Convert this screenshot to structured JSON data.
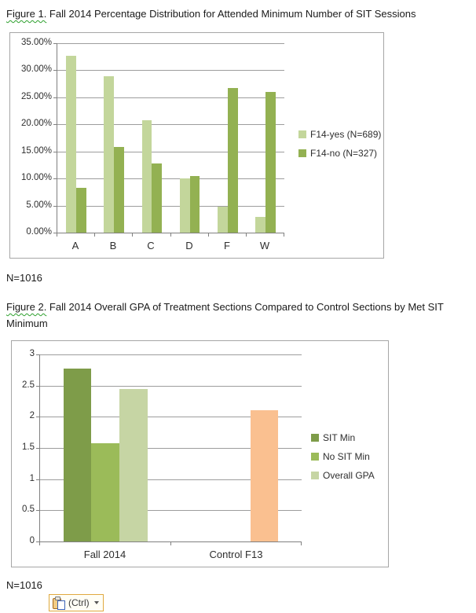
{
  "page": {
    "figure1_caption_label": "Figure 1.",
    "figure1_caption_text": " Fall 2014  Percentage Distribution for Attended Minimum Number of SIT Sessions",
    "n1": "N=1016",
    "figure2_caption_label": "Figure 2.",
    "figure2_caption_text": " Fall 2014  Overall GPA of Treatment Sections Compared to Control Sections by Met SIT Minimum",
    "n2": "N=1016",
    "paste_button": {
      "label": "(Ctrl)",
      "icon": "clipboard-paste-icon"
    }
  },
  "chart_data": [
    {
      "type": "bar",
      "title": "",
      "categories": [
        "A",
        "B",
        "C",
        "D",
        "F",
        "W"
      ],
      "series": [
        {
          "name": "F14-yes (N=689)",
          "color": "#C3D69B",
          "values": [
            32.7,
            28.9,
            20.8,
            10.0,
            4.8,
            2.9
          ]
        },
        {
          "name": "F14-no (N=327)",
          "color": "#93B152",
          "values": [
            8.3,
            15.8,
            12.8,
            10.4,
            26.7,
            26.0
          ]
        }
      ],
      "ylim": [
        0,
        35
      ],
      "ytick_values": [
        0,
        5,
        10,
        15,
        20,
        25,
        30,
        35
      ],
      "ytick_labels": [
        "0.00%",
        "5.00%",
        "10.00%",
        "15.00%",
        "20.00%",
        "25.00%",
        "30.00%",
        "35.00%"
      ],
      "grid": true,
      "legend_position": "right",
      "group_width_ratio": 0.535,
      "gridline_color": "#9d9d9d"
    },
    {
      "type": "bar",
      "title": "",
      "categories": [
        "Fall 2014",
        "Control F13"
      ],
      "series": [
        {
          "name": "SIT Min",
          "color": "#7E9C49",
          "values": [
            2.77,
            null
          ]
        },
        {
          "name": "No SIT Min",
          "color": "#9BBB59",
          "values": [
            1.58,
            null
          ]
        },
        {
          "name": "Overall GPA",
          "color": "#C6D5A4",
          "values": [
            2.44,
            2.1
          ],
          "point_colors": [
            null,
            "#FAC090"
          ]
        }
      ],
      "ylim": [
        0,
        3
      ],
      "ytick_values": [
        0,
        0.5,
        1,
        1.5,
        2,
        2.5,
        3
      ],
      "ytick_labels": [
        "0",
        "0.5",
        "1",
        "1.5",
        "2",
        "2.5",
        "3"
      ],
      "grid": true,
      "legend_position": "right",
      "group_width_ratio": 0.645,
      "gridline_color": "#9d9d9d"
    }
  ]
}
